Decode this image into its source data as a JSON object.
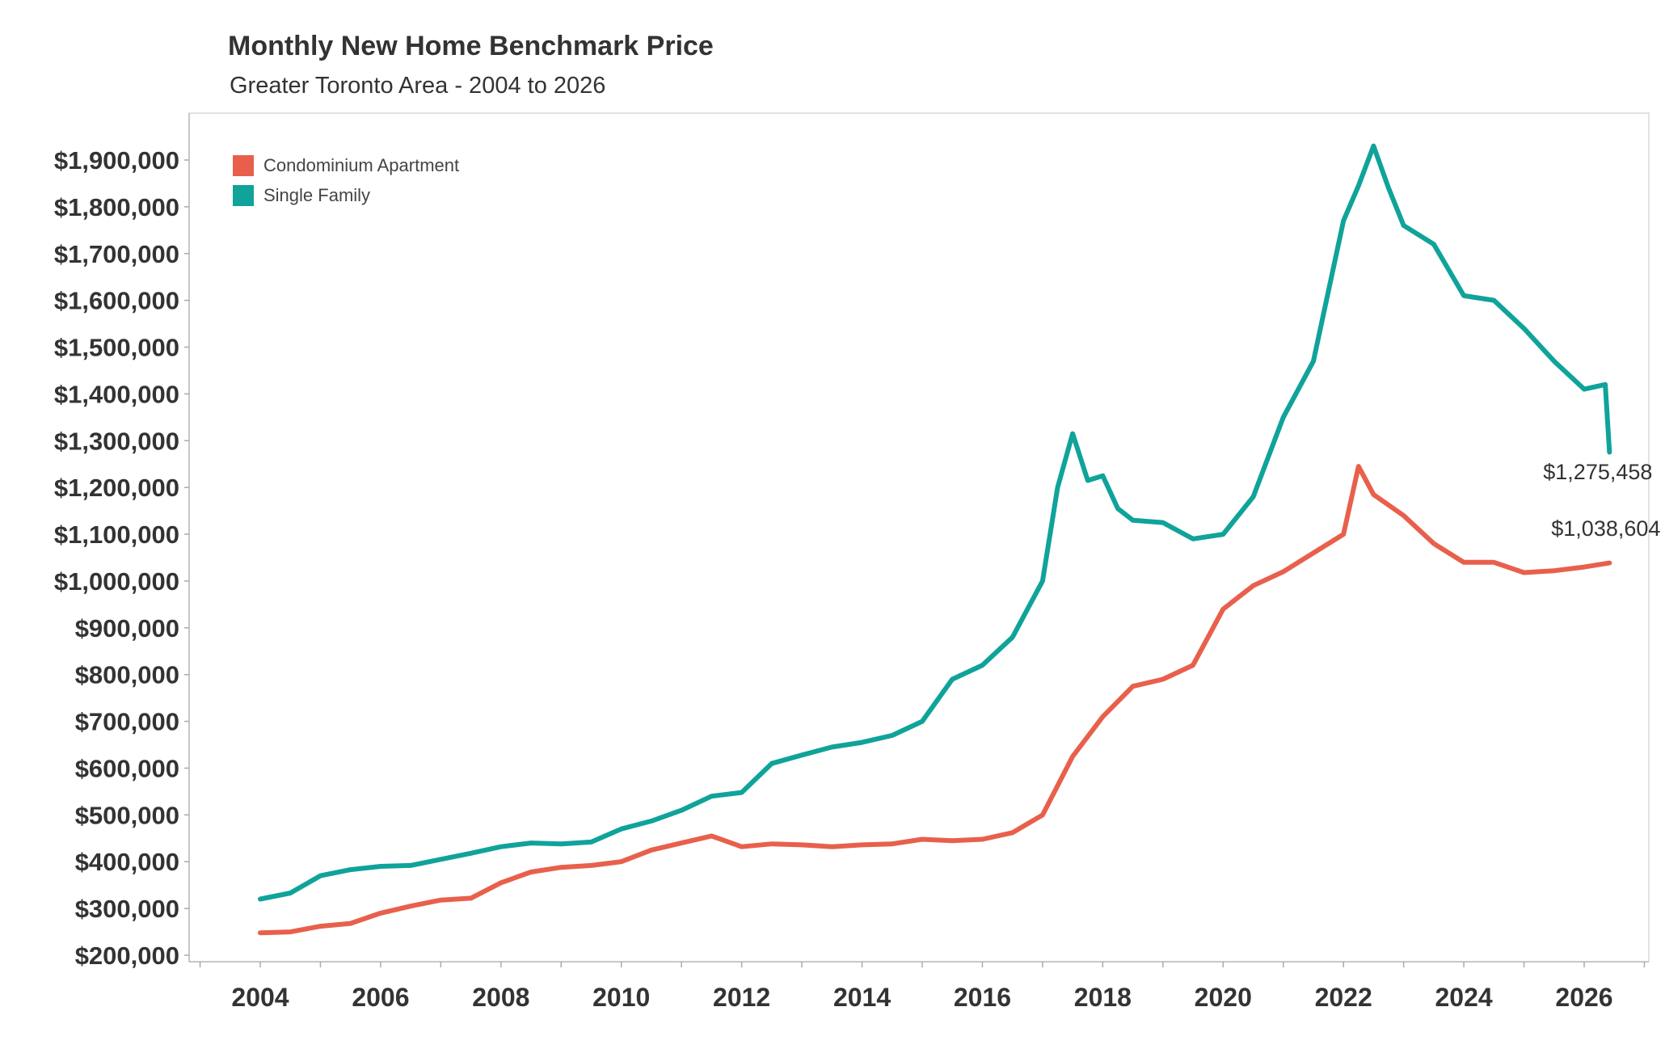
{
  "title": "Monthly New Home Benchmark Price",
  "subtitle": "Greater Toronto Area - 2004 to 2026",
  "colors": {
    "condo": "#E8604C",
    "single": "#0FA39A"
  },
  "chart_data": {
    "type": "line",
    "title": "Monthly New Home Benchmark Price",
    "subtitle": "Greater Toronto Area - 2004 to 2026",
    "xlabel": "",
    "ylabel": "",
    "xlim": [
      2003.0,
      2027.0
    ],
    "ylim": [
      180000,
      2000000
    ],
    "x_ticks": [
      "2004",
      "2006",
      "2008",
      "2010",
      "2012",
      "2014",
      "2016",
      "2018",
      "2020",
      "2022",
      "2024",
      "2026"
    ],
    "y_ticks": [
      "$200,000",
      "$300,000",
      "$400,000",
      "$500,000",
      "$600,000",
      "$700,000",
      "$800,000",
      "$900,000",
      "$1,000,000",
      "$1,100,000",
      "$1,200,000",
      "$1,300,000",
      "$1,400,000",
      "$1,500,000",
      "$1,600,000",
      "$1,700,000",
      "$1,800,000",
      "$1,900,000"
    ],
    "legend_position": "top-left",
    "grid": false,
    "series": [
      {
        "name": "Condominium Apartment",
        "color": "#E8604C",
        "end_label": "$1,038,604",
        "points": [
          [
            2004.0,
            248000
          ],
          [
            2004.5,
            250000
          ],
          [
            2005.0,
            262000
          ],
          [
            2005.5,
            268000
          ],
          [
            2006.0,
            290000
          ],
          [
            2006.5,
            305000
          ],
          [
            2007.0,
            318000
          ],
          [
            2007.5,
            322000
          ],
          [
            2008.0,
            355000
          ],
          [
            2008.5,
            378000
          ],
          [
            2009.0,
            388000
          ],
          [
            2009.5,
            392000
          ],
          [
            2010.0,
            400000
          ],
          [
            2010.5,
            425000
          ],
          [
            2011.0,
            440000
          ],
          [
            2011.5,
            455000
          ],
          [
            2012.0,
            432000
          ],
          [
            2012.5,
            438000
          ],
          [
            2013.0,
            436000
          ],
          [
            2013.5,
            432000
          ],
          [
            2014.0,
            436000
          ],
          [
            2014.5,
            438000
          ],
          [
            2015.0,
            448000
          ],
          [
            2015.5,
            445000
          ],
          [
            2016.0,
            448000
          ],
          [
            2016.5,
            462000
          ],
          [
            2017.0,
            500000
          ],
          [
            2017.5,
            625000
          ],
          [
            2018.0,
            710000
          ],
          [
            2018.5,
            775000
          ],
          [
            2019.0,
            790000
          ],
          [
            2019.5,
            820000
          ],
          [
            2020.0,
            940000
          ],
          [
            2020.5,
            990000
          ],
          [
            2021.0,
            1020000
          ],
          [
            2021.5,
            1060000
          ],
          [
            2022.0,
            1100000
          ],
          [
            2022.25,
            1245000
          ],
          [
            2022.5,
            1185000
          ],
          [
            2023.0,
            1140000
          ],
          [
            2023.5,
            1080000
          ],
          [
            2024.0,
            1040000
          ],
          [
            2024.5,
            1040000
          ],
          [
            2025.0,
            1018000
          ],
          [
            2025.5,
            1022000
          ],
          [
            2026.0,
            1030000
          ],
          [
            2026.42,
            1038604
          ]
        ]
      },
      {
        "name": "Single Family",
        "color": "#0FA39A",
        "end_label": "$1,275,458",
        "points": [
          [
            2004.0,
            320000
          ],
          [
            2004.5,
            333000
          ],
          [
            2005.0,
            370000
          ],
          [
            2005.5,
            383000
          ],
          [
            2006.0,
            390000
          ],
          [
            2006.5,
            392000
          ],
          [
            2007.0,
            405000
          ],
          [
            2007.5,
            418000
          ],
          [
            2008.0,
            432000
          ],
          [
            2008.5,
            440000
          ],
          [
            2009.0,
            438000
          ],
          [
            2009.5,
            442000
          ],
          [
            2010.0,
            470000
          ],
          [
            2010.5,
            487000
          ],
          [
            2011.0,
            510000
          ],
          [
            2011.5,
            540000
          ],
          [
            2012.0,
            548000
          ],
          [
            2012.5,
            610000
          ],
          [
            2013.0,
            628000
          ],
          [
            2013.5,
            645000
          ],
          [
            2014.0,
            655000
          ],
          [
            2014.5,
            670000
          ],
          [
            2015.0,
            700000
          ],
          [
            2015.5,
            790000
          ],
          [
            2016.0,
            820000
          ],
          [
            2016.5,
            880000
          ],
          [
            2017.0,
            1000000
          ],
          [
            2017.25,
            1200000
          ],
          [
            2017.5,
            1315000
          ],
          [
            2017.75,
            1215000
          ],
          [
            2018.0,
            1225000
          ],
          [
            2018.25,
            1155000
          ],
          [
            2018.5,
            1130000
          ],
          [
            2019.0,
            1125000
          ],
          [
            2019.5,
            1090000
          ],
          [
            2020.0,
            1100000
          ],
          [
            2020.5,
            1180000
          ],
          [
            2021.0,
            1350000
          ],
          [
            2021.5,
            1470000
          ],
          [
            2022.0,
            1770000
          ],
          [
            2022.25,
            1845000
          ],
          [
            2022.5,
            1930000
          ],
          [
            2022.75,
            1840000
          ],
          [
            2023.0,
            1760000
          ],
          [
            2023.5,
            1720000
          ],
          [
            2024.0,
            1610000
          ],
          [
            2024.5,
            1600000
          ],
          [
            2025.0,
            1540000
          ],
          [
            2025.5,
            1470000
          ],
          [
            2026.0,
            1410000
          ],
          [
            2026.35,
            1420000
          ],
          [
            2026.42,
            1275458
          ]
        ]
      }
    ]
  }
}
